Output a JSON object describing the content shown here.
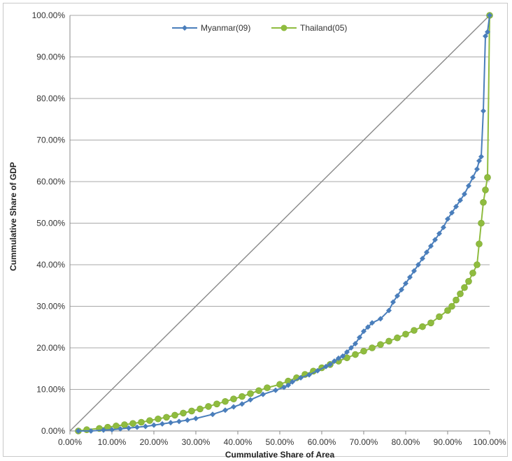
{
  "chart_data": {
    "type": "line",
    "title": "",
    "xlabel": "Cummulative Share of Area",
    "ylabel": "Cummulative Share of GDP",
    "xlim": [
      0,
      100
    ],
    "ylim": [
      0,
      100
    ],
    "x_ticks": [
      "0.00%",
      "10.00%",
      "20.00%",
      "30.00%",
      "40.00%",
      "50.00%",
      "60.00%",
      "70.00%",
      "80.00%",
      "90.00%",
      "100.00%"
    ],
    "y_ticks": [
      "0.00%",
      "10.00%",
      "20.00%",
      "30.00%",
      "40.00%",
      "50.00%",
      "60.00%",
      "70.00%",
      "80.00%",
      "90.00%",
      "100.00%"
    ],
    "grid": "horizontal",
    "legend_position": "top-center",
    "equality_line": {
      "x": [
        0,
        100
      ],
      "y": [
        0,
        100
      ],
      "color": "#8a8a8a"
    },
    "series": [
      {
        "name": "Myanmar(09)",
        "color": "#4a7ebb",
        "marker": "diamond",
        "x": [
          2,
          5,
          8,
          10,
          12,
          14,
          16,
          18,
          20,
          22,
          24,
          26,
          28,
          30,
          34,
          37,
          39,
          41,
          43,
          46,
          49,
          51,
          52,
          53,
          55,
          57,
          59,
          61,
          62,
          63,
          64,
          65,
          66,
          67,
          68,
          69,
          70,
          71,
          72,
          74,
          76,
          77,
          78,
          79,
          80,
          81,
          82,
          83,
          84,
          85,
          86,
          87,
          88,
          89,
          90,
          91,
          92,
          93,
          94,
          95,
          96,
          97,
          97.5,
          98,
          98.5,
          99,
          99.5,
          100
        ],
        "y": [
          0,
          0,
          0.2,
          0.3,
          0.5,
          0.7,
          0.9,
          1.1,
          1.4,
          1.7,
          2.0,
          2.3,
          2.6,
          3.0,
          4.0,
          5.0,
          5.8,
          6.5,
          7.5,
          8.8,
          9.8,
          10.5,
          11.0,
          11.8,
          12.8,
          13.5,
          14.5,
          15.5,
          16.0,
          16.8,
          17.5,
          18.0,
          19.0,
          20.0,
          21.0,
          22.5,
          24.0,
          25.0,
          26.0,
          27.0,
          29.0,
          31.0,
          32.5,
          34.0,
          35.5,
          37.0,
          38.5,
          40.0,
          41.5,
          43.0,
          44.5,
          46.0,
          47.5,
          49.0,
          51.0,
          52.5,
          54.0,
          55.5,
          57.0,
          59.0,
          61.0,
          63.0,
          65.0,
          66.0,
          77.0,
          95.0,
          96.0,
          100.0
        ]
      },
      {
        "name": "Thailand(05)",
        "color": "#8fbc3f",
        "marker": "circle",
        "x": [
          2,
          4,
          7,
          9,
          11,
          13,
          15,
          17,
          19,
          21,
          23,
          25,
          27,
          29,
          31,
          33,
          35,
          37,
          39,
          41,
          43,
          45,
          47,
          50,
          52,
          54,
          56,
          58,
          60,
          62,
          64,
          66,
          68,
          70,
          72,
          74,
          76,
          78,
          80,
          82,
          84,
          86,
          88,
          90,
          91,
          92,
          93,
          94,
          95,
          96,
          97,
          97.5,
          98,
          98.5,
          99,
          99.5,
          100
        ],
        "y": [
          0,
          0.3,
          0.6,
          0.9,
          1.2,
          1.5,
          1.8,
          2.1,
          2.5,
          2.9,
          3.3,
          3.8,
          4.3,
          4.8,
          5.3,
          5.9,
          6.5,
          7.1,
          7.7,
          8.3,
          9.0,
          9.7,
          10.4,
          11.2,
          12.0,
          12.8,
          13.6,
          14.4,
          15.2,
          16.0,
          16.8,
          17.6,
          18.4,
          19.2,
          20.0,
          20.8,
          21.6,
          22.4,
          23.3,
          24.2,
          25.1,
          26.0,
          27.5,
          29.0,
          30.0,
          31.5,
          33.0,
          34.5,
          36.0,
          38.0,
          40.0,
          45.0,
          50.0,
          55.0,
          58.0,
          61.0,
          100.0
        ]
      }
    ]
  }
}
